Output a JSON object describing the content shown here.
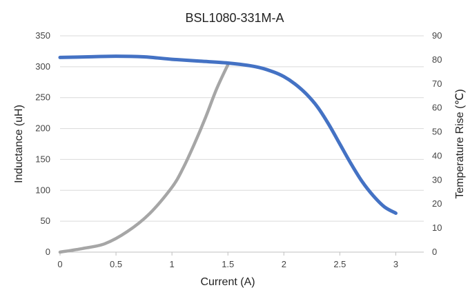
{
  "chart_data": {
    "type": "line",
    "title": "BSL1080-331M-A",
    "xlabel": "Current (A)",
    "ylabel": "Inductance (uH)",
    "y2label": "Temperature Rise (℃)",
    "xlim": [
      0,
      3.25
    ],
    "ylim": [
      0,
      350
    ],
    "y2lim": [
      0,
      90
    ],
    "x_ticks": [
      0,
      0.5,
      1,
      1.5,
      2,
      2.5,
      3
    ],
    "x_tick_labels": [
      "0",
      "0.5",
      "1",
      "1.5",
      "2",
      "2.5",
      "3"
    ],
    "y_ticks": [
      0,
      50,
      100,
      150,
      200,
      250,
      300,
      350
    ],
    "y_tick_labels": [
      "0",
      "50",
      "100",
      "150",
      "200",
      "250",
      "300",
      "350"
    ],
    "y2_ticks": [
      0,
      10,
      20,
      30,
      40,
      50,
      60,
      70,
      80,
      90
    ],
    "y2_tick_labels": [
      "0",
      "10",
      "20",
      "30",
      "40",
      "50",
      "60",
      "70",
      "80",
      "90"
    ],
    "grid": true,
    "legend": "none",
    "series": [
      {
        "axis": "left",
        "color": "#4472c4",
        "x": [
          0,
          0.25,
          0.5,
          0.75,
          1.0,
          1.25,
          1.5,
          1.75,
          1.9,
          2.0,
          2.1,
          2.2,
          2.3,
          2.4,
          2.5,
          2.6,
          2.7,
          2.8,
          2.9,
          3.0
        ],
        "values": [
          315,
          316,
          317,
          316,
          312,
          309,
          306,
          300,
          292,
          284,
          272,
          256,
          235,
          207,
          175,
          143,
          114,
          91,
          73,
          63
        ]
      },
      {
        "axis": "right",
        "color": "#a6a6a6",
        "x": [
          0,
          0.2,
          0.4,
          0.6,
          0.8,
          1.0,
          1.1,
          1.2,
          1.3,
          1.4,
          1.5
        ],
        "values": [
          0,
          1.5,
          3.5,
          8.5,
          16,
          27,
          35,
          45,
          56,
          68,
          78
        ]
      }
    ]
  }
}
